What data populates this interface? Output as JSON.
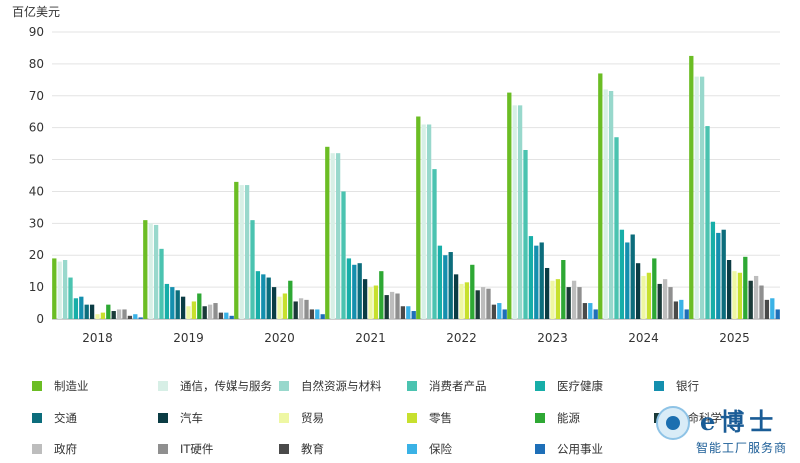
{
  "chart_data": {
    "type": "bar",
    "ylabel": "百亿美元",
    "ylim": [
      0,
      90
    ],
    "yticks": [
      0,
      10,
      20,
      30,
      40,
      50,
      60,
      70,
      80,
      90
    ],
    "grid": true,
    "legend_position": "bottom",
    "categories": [
      "2018",
      "2019",
      "2020",
      "2021",
      "2022",
      "2023",
      "2024",
      "2025"
    ],
    "series": [
      {
        "name": "制造业",
        "color": "#6bbd24",
        "values": [
          19,
          31,
          43,
          54,
          63.5,
          71,
          77,
          82.5
        ]
      },
      {
        "name": "通信，传媒与服务",
        "color": "#d7efe6",
        "values": [
          18,
          30,
          42,
          52,
          61,
          67,
          72,
          76
        ]
      },
      {
        "name": "自然资源与材料",
        "color": "#98d8cc",
        "values": [
          18.5,
          29.5,
          42,
          52,
          61,
          67,
          71.5,
          76
        ]
      },
      {
        "name": "消费者产品",
        "color": "#4bc3b0",
        "values": [
          13,
          22,
          31,
          40,
          47,
          53,
          57,
          60.5
        ]
      },
      {
        "name": "医疗健康",
        "color": "#17aea8",
        "values": [
          6.5,
          11,
          15,
          19,
          23,
          26,
          28,
          30.5
        ]
      },
      {
        "name": "银行",
        "color": "#148fae",
        "values": [
          7,
          10,
          14,
          17,
          20,
          23,
          24,
          27
        ]
      },
      {
        "name": "交通",
        "color": "#0c6d7c",
        "values": [
          4.5,
          9,
          13,
          17.5,
          21,
          24,
          26.5,
          28
        ]
      },
      {
        "name": "汽车",
        "color": "#0b3c44",
        "values": [
          4.5,
          7,
          10,
          12.5,
          14,
          16,
          17.5,
          18.5
        ]
      },
      {
        "name": "贸易",
        "color": "#eef7a3",
        "values": [
          1.5,
          4,
          7,
          10,
          11,
          12,
          13.5,
          15
        ]
      },
      {
        "name": "零售",
        "color": "#c7e02e",
        "values": [
          2,
          5.5,
          8,
          10.5,
          11.5,
          12.5,
          14.5,
          14.5
        ]
      },
      {
        "name": "能源",
        "color": "#2ea834",
        "values": [
          4.5,
          8,
          12,
          15,
          17,
          18.5,
          19,
          19.5
        ]
      },
      {
        "name": "生命科学",
        "color": "#1a3a38",
        "values": [
          2.5,
          4,
          5.5,
          7.5,
          9,
          10,
          11,
          12
        ]
      },
      {
        "name": "政府",
        "color": "#bdbdbd",
        "values": [
          3,
          4.5,
          6.5,
          8.5,
          10,
          12,
          12.5,
          13.5
        ]
      },
      {
        "name": "IT硬件",
        "color": "#8f8f8f",
        "values": [
          3,
          5,
          6,
          8,
          9.5,
          10,
          10,
          10.5
        ]
      },
      {
        "name": "教育",
        "color": "#4a4a4a",
        "values": [
          1,
          2,
          3,
          4,
          4.5,
          5,
          5.5,
          6
        ]
      },
      {
        "name": "保险",
        "color": "#3ab2e6",
        "values": [
          1.5,
          2,
          3,
          4,
          5,
          5,
          6,
          6.5
        ]
      },
      {
        "name": "公用事业",
        "color": "#1e6fb8",
        "values": [
          0.5,
          1,
          1.5,
          2.5,
          3,
          3,
          3,
          3
        ]
      }
    ]
  },
  "watermark": {
    "title": "e博士",
    "subtitle": "智能工厂服务商"
  }
}
